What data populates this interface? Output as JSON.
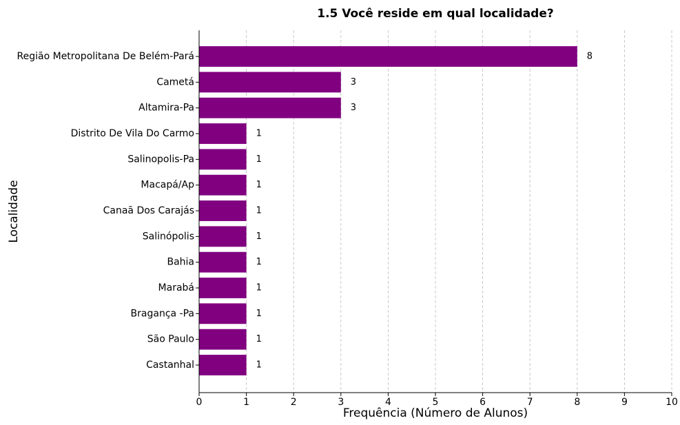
{
  "chart_data": {
    "type": "barh",
    "title": "1.5 Você reside em qual localidade?",
    "x_label": "Frequência (Número de Alunos)",
    "y_label": "Localidade",
    "categories": [
      "Região Metropolitana De Belém-Pará",
      "Cametá",
      "Altamira-Pa",
      "Distrito De Vila Do Carmo",
      "Salinopolis-Pa",
      "Macapá/Ap",
      "Canaã Dos Carajás",
      "Salinópolis",
      "Bahia",
      "Marabá",
      "Bragança -Pa",
      "São Paulo",
      "Castanhal"
    ],
    "values": [
      8,
      3,
      3,
      1,
      1,
      1,
      1,
      1,
      1,
      1,
      1,
      1,
      1
    ],
    "color": "#800080",
    "xlim": [
      0,
      10
    ],
    "xticks": [
      0,
      1,
      2,
      3,
      4,
      5,
      6,
      7,
      8,
      9,
      10
    ],
    "grid": true
  }
}
